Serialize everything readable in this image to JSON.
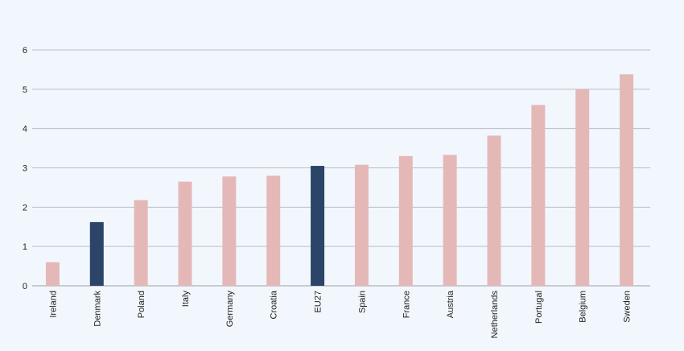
{
  "chart_data": {
    "type": "bar",
    "categories": [
      "Ireland",
      "Denmark",
      "Poland",
      "Italy",
      "Germany",
      "Croatia",
      "EU27",
      "Spain",
      "France",
      "Austria",
      "Netherlands",
      "Portugal",
      "Belgium",
      "Sweden"
    ],
    "values": [
      0.6,
      1.62,
      2.18,
      2.65,
      2.78,
      2.8,
      3.05,
      3.08,
      3.3,
      3.33,
      3.82,
      4.6,
      5.0,
      5.38
    ],
    "highlighted": [
      "Denmark",
      "EU27"
    ],
    "ylim": [
      0,
      6
    ],
    "yticks": [
      0,
      1,
      2,
      3,
      4,
      5,
      6
    ],
    "grid": true,
    "colors": {
      "default": "#e5b8b8",
      "highlight": "#2b4468",
      "grid": "#b9bec6",
      "axis": "#9aa0a8"
    },
    "title": "",
    "xlabel": "",
    "ylabel": ""
  }
}
